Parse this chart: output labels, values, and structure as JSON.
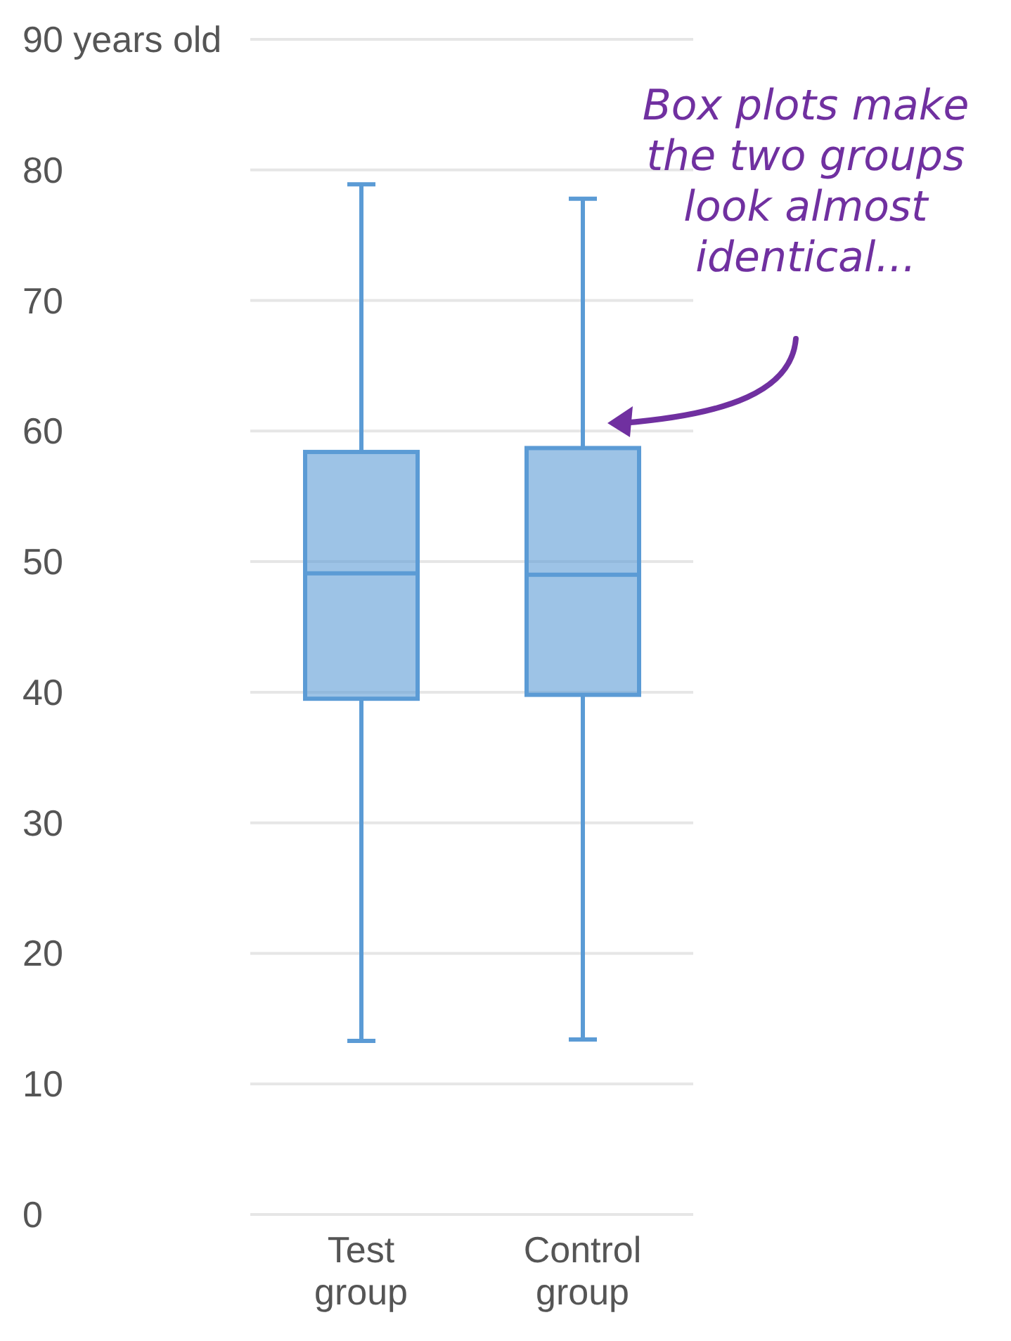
{
  "chart_data": {
    "type": "box",
    "categories": [
      "Test group",
      "Control group"
    ],
    "boxes": [
      {
        "low": 13.3,
        "q1": 39.5,
        "median": 49.1,
        "q3": 58.4,
        "high": 78.9
      },
      {
        "low": 13.4,
        "q1": 39.8,
        "median": 49,
        "q3": 58.7,
        "high": 77.8
      }
    ],
    "color": "#5b9bd5",
    "ylim": [
      0,
      90
    ],
    "yticks": [
      0,
      10,
      20,
      30,
      40,
      50,
      60,
      70,
      80,
      {
        "value": 90,
        "label": "90 years old"
      }
    ],
    "grid": "y",
    "annotations": [
      "Box plots make the two groups look almost identical..."
    ]
  }
}
